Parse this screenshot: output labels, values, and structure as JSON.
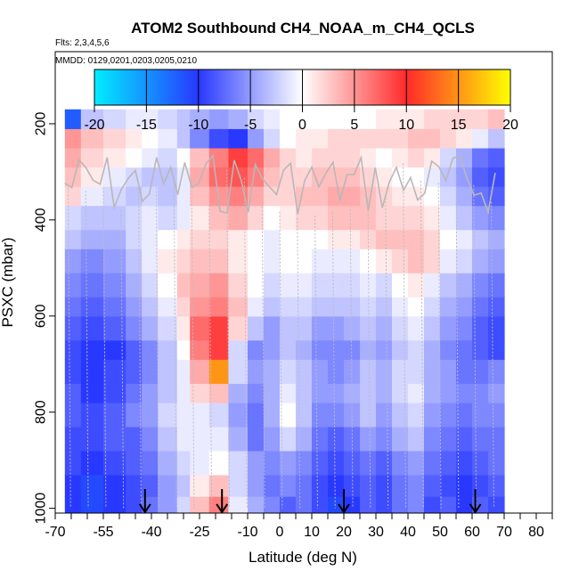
{
  "chart_data": {
    "type": "heatmap",
    "title": "ATOM2 Southbound CH4_NOAA_m_CH4_QCLS",
    "flights_label": "Flts: 2,3,4,5,6",
    "dates_label": "MMDD: 0129,0201,0203,0205,0210",
    "xlabel": "Latitude (deg N)",
    "ylabel": "PSXC (mbar)",
    "xlim": [
      -70,
      85
    ],
    "ylim": [
      1010,
      50
    ],
    "x_ticks": [
      -70,
      -55,
      -40,
      -25,
      -10,
      0,
      10,
      20,
      30,
      40,
      50,
      60,
      70,
      80
    ],
    "x_tick_labels": [
      "-70",
      "-55",
      "-40",
      "-25",
      "-10",
      "0",
      "10",
      "20",
      "30",
      "40",
      "50",
      "60",
      "70",
      "80"
    ],
    "x_minor_ticks": [
      -65,
      -60,
      -50,
      -45,
      -35,
      -30,
      -20,
      -15,
      -5,
      5,
      15,
      25,
      35,
      45,
      55,
      65,
      75,
      85
    ],
    "y_ticks": [
      200,
      400,
      600,
      800,
      1000
    ],
    "y_tick_labels": [
      "200",
      "400",
      "600",
      "800",
      "1000"
    ],
    "colorbar": {
      "min": -20,
      "max": 20,
      "ticks": [
        -20,
        -15,
        -10,
        -5,
        0,
        5,
        10,
        15,
        20
      ],
      "tick_labels": [
        "-20",
        "-15",
        "-10",
        "-5",
        "0",
        "5",
        "10",
        "15",
        "20"
      ],
      "colors": [
        [
          -20,
          "#00eeff"
        ],
        [
          -10,
          "#2838ff"
        ],
        [
          0,
          "#ffffff"
        ],
        [
          10,
          "#ff2a2a"
        ],
        [
          20,
          "#ffff00"
        ]
      ]
    },
    "arrows_lat": [
      -42,
      -18,
      20,
      61
    ],
    "lat_bins": [
      -67,
      -62,
      -55,
      -48,
      -43,
      -38,
      -32,
      -28,
      -22,
      -16,
      -10,
      -5,
      0,
      5,
      10,
      15,
      20,
      25,
      30,
      35,
      40,
      45,
      50,
      55,
      60,
      65,
      70
    ],
    "p_bins": [
      1010,
      975,
      930,
      880,
      830,
      780,
      740,
      690,
      650,
      600,
      560,
      510,
      460,
      420,
      370,
      330,
      290,
      250,
      210,
      170
    ],
    "cells": [
      [
        -10,
        -11,
        -10,
        -9,
        -7,
        -5,
        -2,
        3,
        6,
        -1,
        -4,
        -6,
        -8,
        -7,
        -9,
        -11,
        -10,
        -8,
        -9,
        -7,
        -6,
        -9,
        -8,
        -10,
        -8,
        -9
      ],
      [
        -10,
        -11,
        -10,
        -9,
        -8,
        -5,
        -3,
        1,
        3,
        -2,
        -5,
        -7,
        -6,
        -7,
        -9,
        -10,
        -9,
        -8,
        -9,
        -7,
        -6,
        -8,
        -9,
        -10,
        -9,
        -8
      ],
      [
        -9,
        -10,
        -9,
        -8,
        -7,
        -4,
        -2,
        -1,
        0,
        -2,
        -5,
        -6,
        -5,
        -6,
        -8,
        -9,
        -8,
        -7,
        -8,
        -6,
        -5,
        -7,
        -8,
        -9,
        -8,
        -7
      ],
      [
        -9,
        -9,
        -8,
        -8,
        -6,
        -3,
        -1,
        -1,
        -1,
        -4,
        -7,
        -5,
        -2,
        -4,
        -7,
        -8,
        -7,
        -5,
        -6,
        -4,
        -3,
        -6,
        -7,
        -8,
        -7,
        -7
      ],
      [
        -8,
        -9,
        -8,
        -6,
        -5,
        -2,
        -1,
        -1,
        -2,
        -5,
        -7,
        -4,
        0,
        -3,
        -6,
        -6,
        -5,
        -3,
        -5,
        -3,
        -2,
        -5,
        -6,
        -7,
        -6,
        -6
      ],
      [
        -8,
        -10,
        -9,
        -7,
        -5,
        -3,
        -1,
        2,
        3,
        -4,
        -6,
        -4,
        -1,
        -3,
        -5,
        -5,
        -4,
        -3,
        -4,
        -2,
        -1,
        -4,
        -5,
        -6,
        -6,
        -5
      ],
      [
        -9,
        -10,
        -9,
        -8,
        -6,
        -3,
        -1,
        4,
        15,
        -2,
        -5,
        -4,
        -2,
        -3,
        -5,
        -6,
        -5,
        -3,
        -4,
        -2,
        -2,
        -4,
        -5,
        -7,
        -7,
        -6
      ],
      [
        -9,
        -10,
        -10,
        -8,
        -6,
        -3,
        0,
        6,
        9,
        -2,
        -6,
        -5,
        -3,
        -4,
        -6,
        -6,
        -6,
        -4,
        -5,
        -3,
        -2,
        -4,
        -6,
        -7,
        -8,
        -9
      ],
      [
        -8,
        -9,
        -8,
        -6,
        -4,
        -2,
        1,
        7,
        9,
        2,
        -3,
        -5,
        -3,
        -3,
        -5,
        -5,
        -4,
        -3,
        -4,
        -2,
        -1,
        -3,
        -5,
        -6,
        -8,
        -9
      ],
      [
        -7,
        -8,
        -7,
        -5,
        -3,
        -1,
        2,
        5,
        6,
        3,
        -1,
        -3,
        -2,
        -2,
        -3,
        -3,
        -3,
        -2,
        -3,
        -1,
        0,
        -2,
        -4,
        -5,
        -7,
        -8
      ],
      [
        -6,
        -7,
        -6,
        -4,
        -2,
        0,
        3,
        4,
        5,
        2,
        0,
        -2,
        -1,
        -1,
        -2,
        -2,
        -2,
        -1,
        -2,
        0,
        1,
        -1,
        -3,
        -4,
        -6,
        -7
      ],
      [
        -5,
        -6,
        -5,
        -3,
        -1,
        1,
        2,
        3,
        3,
        1,
        0,
        -1,
        0,
        0,
        -1,
        -1,
        -1,
        0,
        1,
        2,
        3,
        2,
        -1,
        -2,
        -4,
        -5
      ],
      [
        -3,
        -4,
        -4,
        -2,
        -1,
        0,
        1,
        2,
        2,
        1,
        0,
        -1,
        0,
        0,
        0,
        1,
        1,
        2,
        3,
        3,
        3,
        2,
        0,
        -1,
        -3,
        -4
      ],
      [
        -2,
        -3,
        -3,
        -2,
        -1,
        -2,
        -1,
        1,
        3,
        4,
        2,
        0,
        1,
        2,
        2,
        3,
        3,
        3,
        2,
        2,
        2,
        1,
        -1,
        -3,
        -5,
        -6
      ],
      [
        2,
        -1,
        -2,
        -3,
        -2,
        -3,
        -1,
        3,
        5,
        6,
        4,
        2,
        2,
        3,
        3,
        4,
        4,
        3,
        2,
        1,
        1,
        0,
        -2,
        -4,
        -7,
        -8
      ],
      [
        3,
        1,
        -1,
        -2,
        -3,
        -3,
        -1,
        4,
        7,
        8,
        6,
        3,
        2,
        2,
        3,
        3,
        3,
        2,
        1,
        0,
        0,
        -1,
        -3,
        -5,
        -8,
        -9
      ],
      [
        4,
        2,
        1,
        0,
        -1,
        -2,
        0,
        3,
        6,
        9,
        7,
        4,
        2,
        1,
        2,
        2,
        2,
        1,
        0,
        1,
        2,
        1,
        -2,
        -4,
        -7,
        -8
      ],
      [
        5,
        3,
        2,
        1,
        0,
        -1,
        -3,
        -6,
        -9,
        -10,
        -5,
        -2,
        0,
        1,
        1,
        2,
        2,
        2,
        2,
        2,
        3,
        3,
        2,
        1,
        -1,
        -3
      ],
      [
        -12,
        -3,
        -2,
        -1,
        -1,
        -2,
        -3,
        -4,
        -5,
        -4,
        -2,
        -1,
        0,
        0,
        0,
        0,
        0,
        0,
        1,
        1,
        1,
        2,
        2,
        2,
        2,
        3
      ]
    ]
  }
}
